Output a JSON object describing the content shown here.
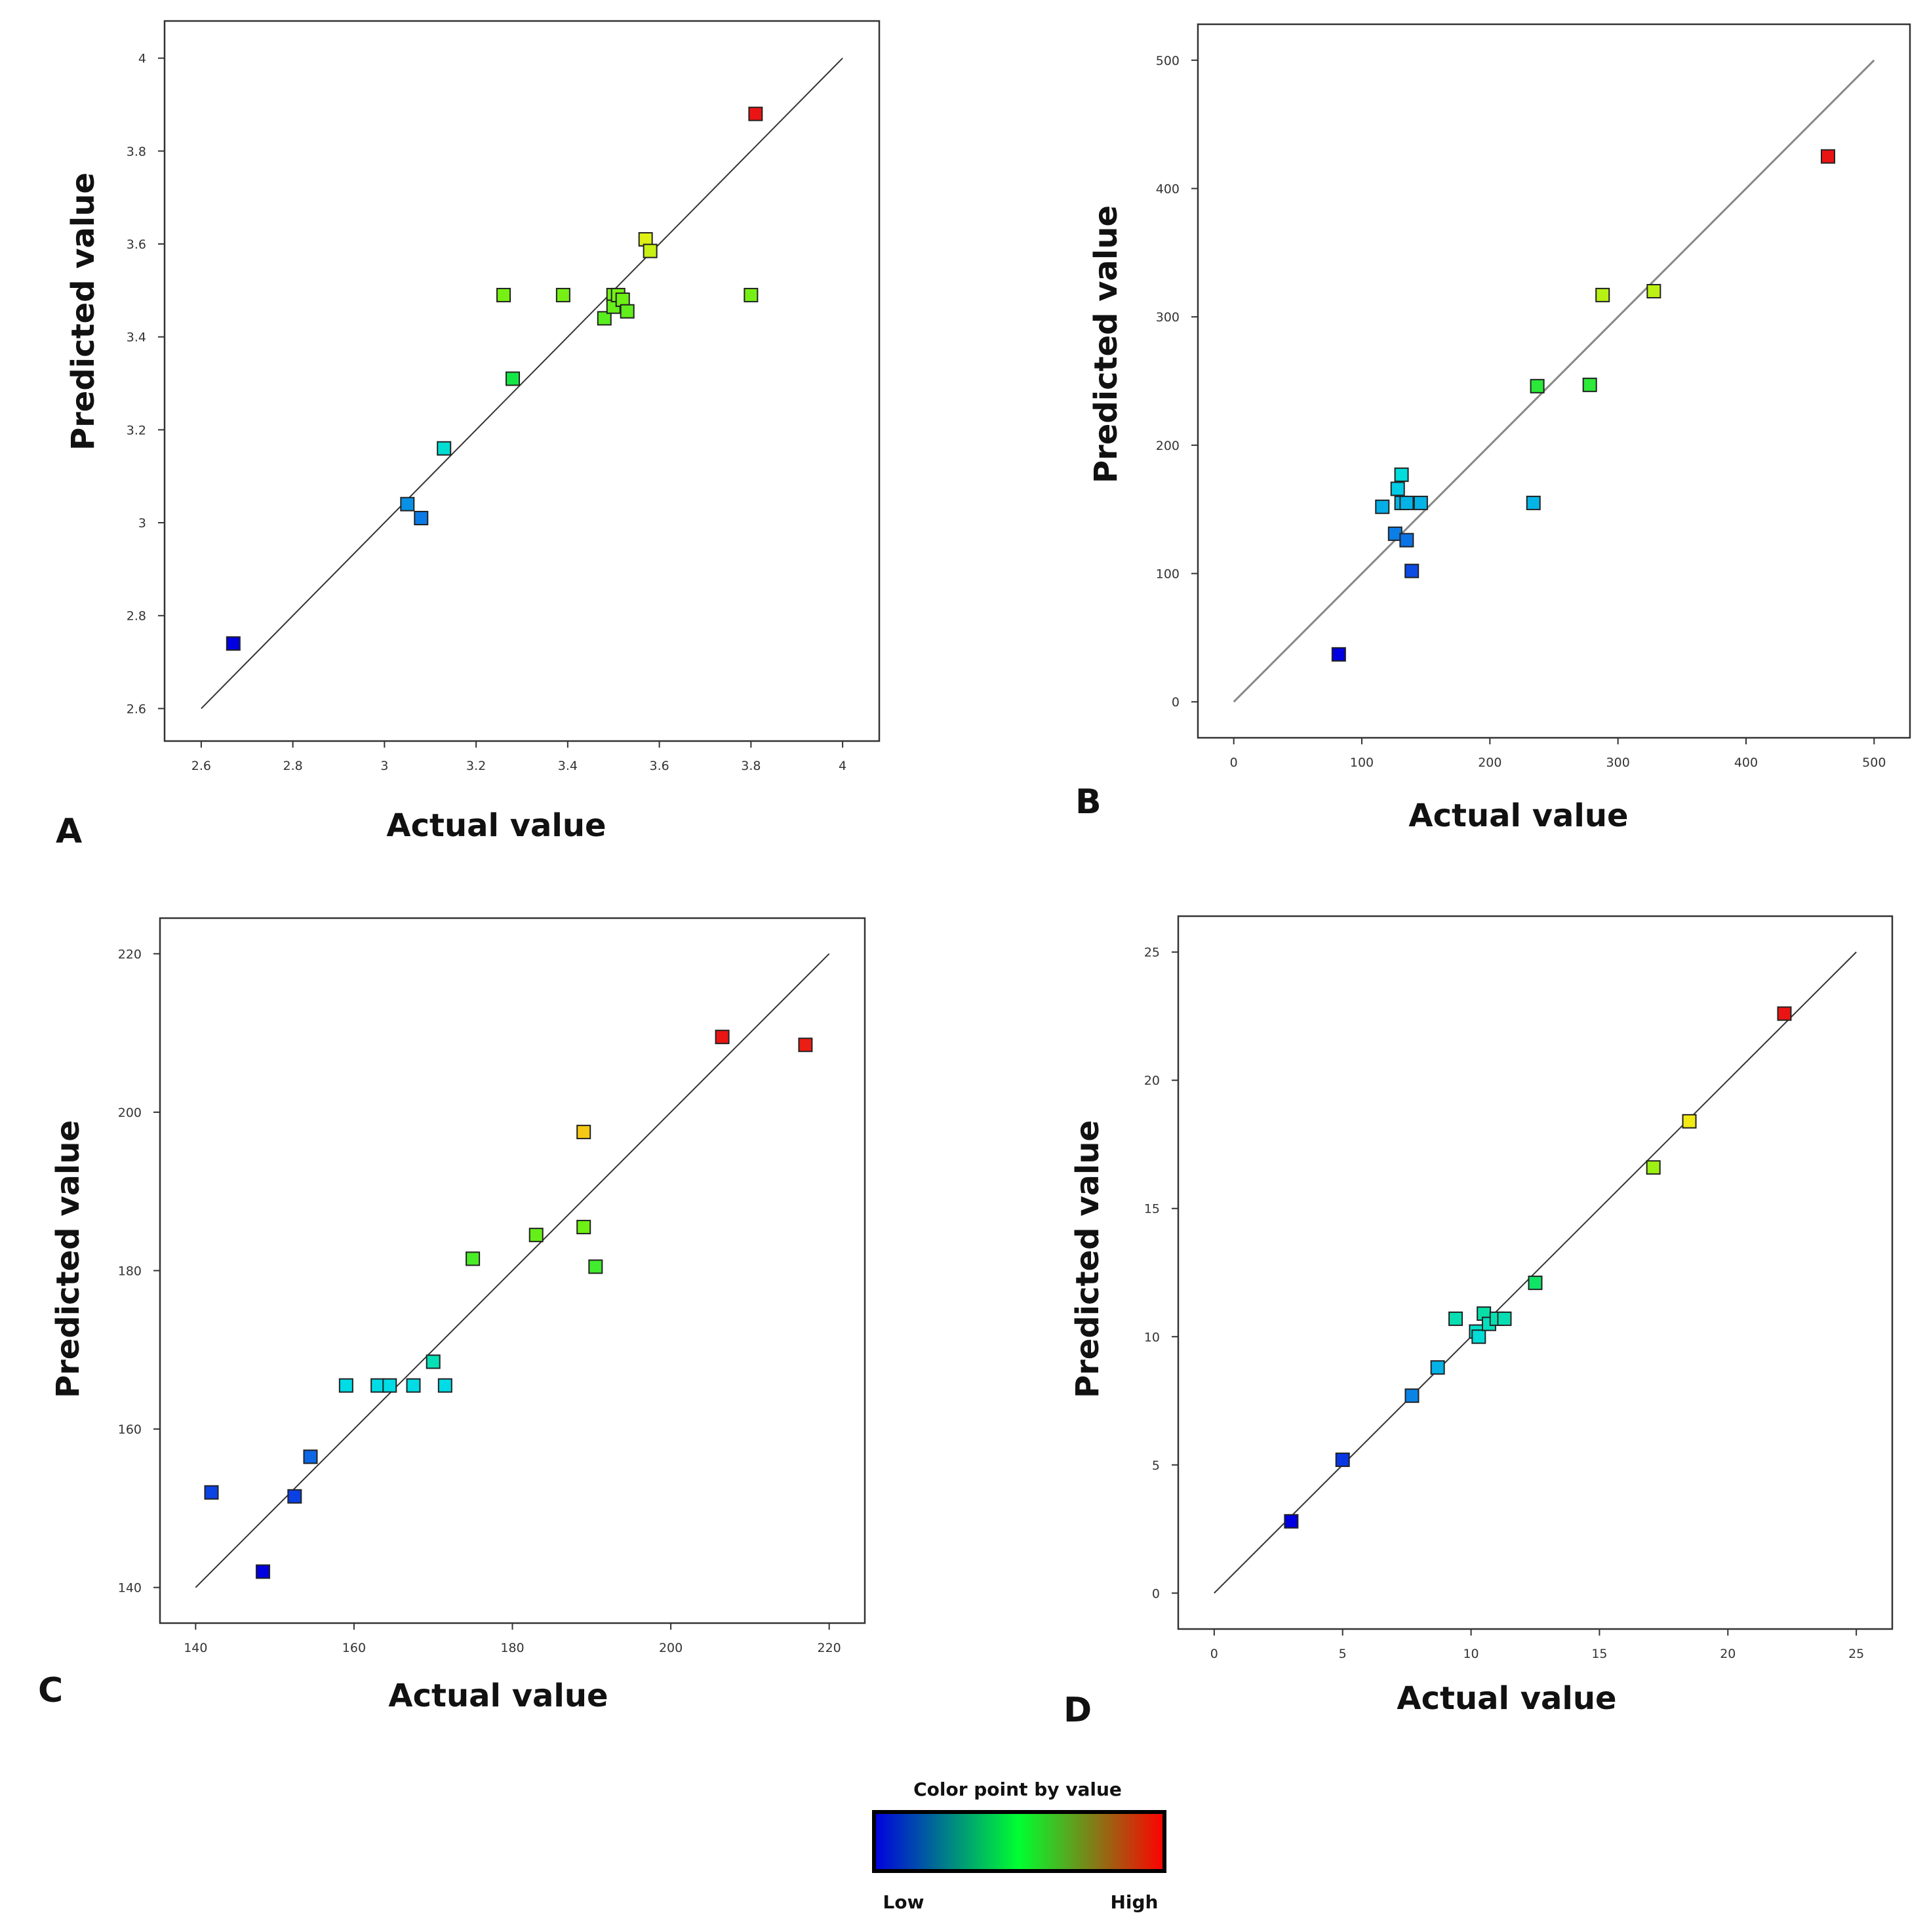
{
  "chart_data": [
    {
      "type": "scatter",
      "panel": "A",
      "xlabel": "Actual value",
      "ylabel": "Predicted value",
      "xlim": [
        2.52,
        4.08
      ],
      "ylim": [
        2.53,
        4.08
      ],
      "xticks": [
        "2.6",
        "2.8",
        "3",
        "3.2",
        "3.4",
        "3.6",
        "3.8",
        "4"
      ],
      "yticks": [
        "2.6",
        "2.8",
        "3",
        "3.2",
        "3.4",
        "3.6",
        "3.8",
        "4"
      ],
      "diagonal": [
        2.6,
        4.0
      ],
      "colorRange": [
        2.74,
        3.88
      ],
      "points": [
        {
          "x": 2.67,
          "y": 2.74
        },
        {
          "x": 3.05,
          "y": 3.04
        },
        {
          "x": 3.08,
          "y": 3.01
        },
        {
          "x": 3.13,
          "y": 3.16
        },
        {
          "x": 3.26,
          "y": 3.49
        },
        {
          "x": 3.28,
          "y": 3.31
        },
        {
          "x": 3.39,
          "y": 3.49
        },
        {
          "x": 3.48,
          "y": 3.44
        },
        {
          "x": 3.5,
          "y": 3.49
        },
        {
          "x": 3.5,
          "y": 3.465
        },
        {
          "x": 3.51,
          "y": 3.49
        },
        {
          "x": 3.52,
          "y": 3.48
        },
        {
          "x": 3.53,
          "y": 3.455
        },
        {
          "x": 3.57,
          "y": 3.61
        },
        {
          "x": 3.58,
          "y": 3.585
        },
        {
          "x": 3.8,
          "y": 3.49
        },
        {
          "x": 3.81,
          "y": 3.88
        }
      ]
    },
    {
      "type": "scatter",
      "panel": "B",
      "xlabel": "Actual value",
      "ylabel": "Predicted value",
      "xlim": [
        -28,
        528
      ],
      "ylim": [
        -28,
        528
      ],
      "xticks": [
        "0",
        "100",
        "200",
        "300",
        "400",
        "500"
      ],
      "yticks": [
        "0",
        "100",
        "200",
        "300",
        "400",
        "500"
      ],
      "diagonal": [
        0,
        500
      ],
      "colorRange": [
        37,
        425
      ],
      "points": [
        {
          "x": 82,
          "y": 37
        },
        {
          "x": 116,
          "y": 152
        },
        {
          "x": 126,
          "y": 131
        },
        {
          "x": 128,
          "y": 166
        },
        {
          "x": 131,
          "y": 177
        },
        {
          "x": 131,
          "y": 155
        },
        {
          "x": 135,
          "y": 155
        },
        {
          "x": 135,
          "y": 126
        },
        {
          "x": 139,
          "y": 102
        },
        {
          "x": 146,
          "y": 155
        },
        {
          "x": 234,
          "y": 155
        },
        {
          "x": 237,
          "y": 246
        },
        {
          "x": 278,
          "y": 247
        },
        {
          "x": 288,
          "y": 317
        },
        {
          "x": 328,
          "y": 320
        },
        {
          "x": 464,
          "y": 425
        }
      ]
    },
    {
      "type": "scatter",
      "panel": "C",
      "xlabel": "Actual value",
      "ylabel": "Predicted value",
      "xlim": [
        135.5,
        224.5
      ],
      "ylim": [
        135.5,
        224.5
      ],
      "xticks": [
        "140",
        "160",
        "180",
        "200",
        "220"
      ],
      "yticks": [
        "140",
        "160",
        "180",
        "200",
        "220"
      ],
      "diagonal": [
        140,
        220
      ],
      "colorRange": [
        142,
        209
      ],
      "points": [
        {
          "x": 142,
          "y": 152
        },
        {
          "x": 148.5,
          "y": 142
        },
        {
          "x": 152.5,
          "y": 151.5
        },
        {
          "x": 154.5,
          "y": 156.5
        },
        {
          "x": 159,
          "y": 165.5
        },
        {
          "x": 163,
          "y": 165.5
        },
        {
          "x": 164.5,
          "y": 165.5
        },
        {
          "x": 167.5,
          "y": 165.5
        },
        {
          "x": 170,
          "y": 168.5
        },
        {
          "x": 171.5,
          "y": 165.5
        },
        {
          "x": 175,
          "y": 181.5
        },
        {
          "x": 183,
          "y": 184.5
        },
        {
          "x": 189,
          "y": 185.5
        },
        {
          "x": 189,
          "y": 197.5
        },
        {
          "x": 190.5,
          "y": 180.5
        },
        {
          "x": 206.5,
          "y": 209.5
        },
        {
          "x": 217,
          "y": 208.5
        }
      ]
    },
    {
      "type": "scatter",
      "panel": "D",
      "xlabel": "Actual value",
      "ylabel": "Predicted value",
      "xlim": [
        -1.4,
        26.4
      ],
      "ylim": [
        -1.4,
        26.4
      ],
      "xticks": [
        "0",
        "5",
        "10",
        "15",
        "20",
        "25"
      ],
      "yticks": [
        "0",
        "5",
        "10",
        "15",
        "20",
        "25"
      ],
      "diagonal": [
        0,
        25
      ],
      "colorRange": [
        2.8,
        22.6
      ],
      "points": [
        {
          "x": 3.0,
          "y": 2.8
        },
        {
          "x": 5.0,
          "y": 5.2
        },
        {
          "x": 7.7,
          "y": 7.7
        },
        {
          "x": 8.7,
          "y": 8.8
        },
        {
          "x": 9.4,
          "y": 10.7
        },
        {
          "x": 10.2,
          "y": 10.2
        },
        {
          "x": 10.3,
          "y": 10.0
        },
        {
          "x": 10.5,
          "y": 10.9
        },
        {
          "x": 10.7,
          "y": 10.5
        },
        {
          "x": 11.0,
          "y": 10.7
        },
        {
          "x": 11.3,
          "y": 10.7
        },
        {
          "x": 12.5,
          "y": 12.1
        },
        {
          "x": 17.1,
          "y": 16.6
        },
        {
          "x": 18.5,
          "y": 18.4
        },
        {
          "x": 22.2,
          "y": 22.6
        }
      ]
    }
  ],
  "legend": {
    "title": "Color point by value",
    "low_label": "Low",
    "high_label": "High",
    "colors": [
      "#0000e0",
      "#00ff30",
      "#ff0000"
    ]
  }
}
